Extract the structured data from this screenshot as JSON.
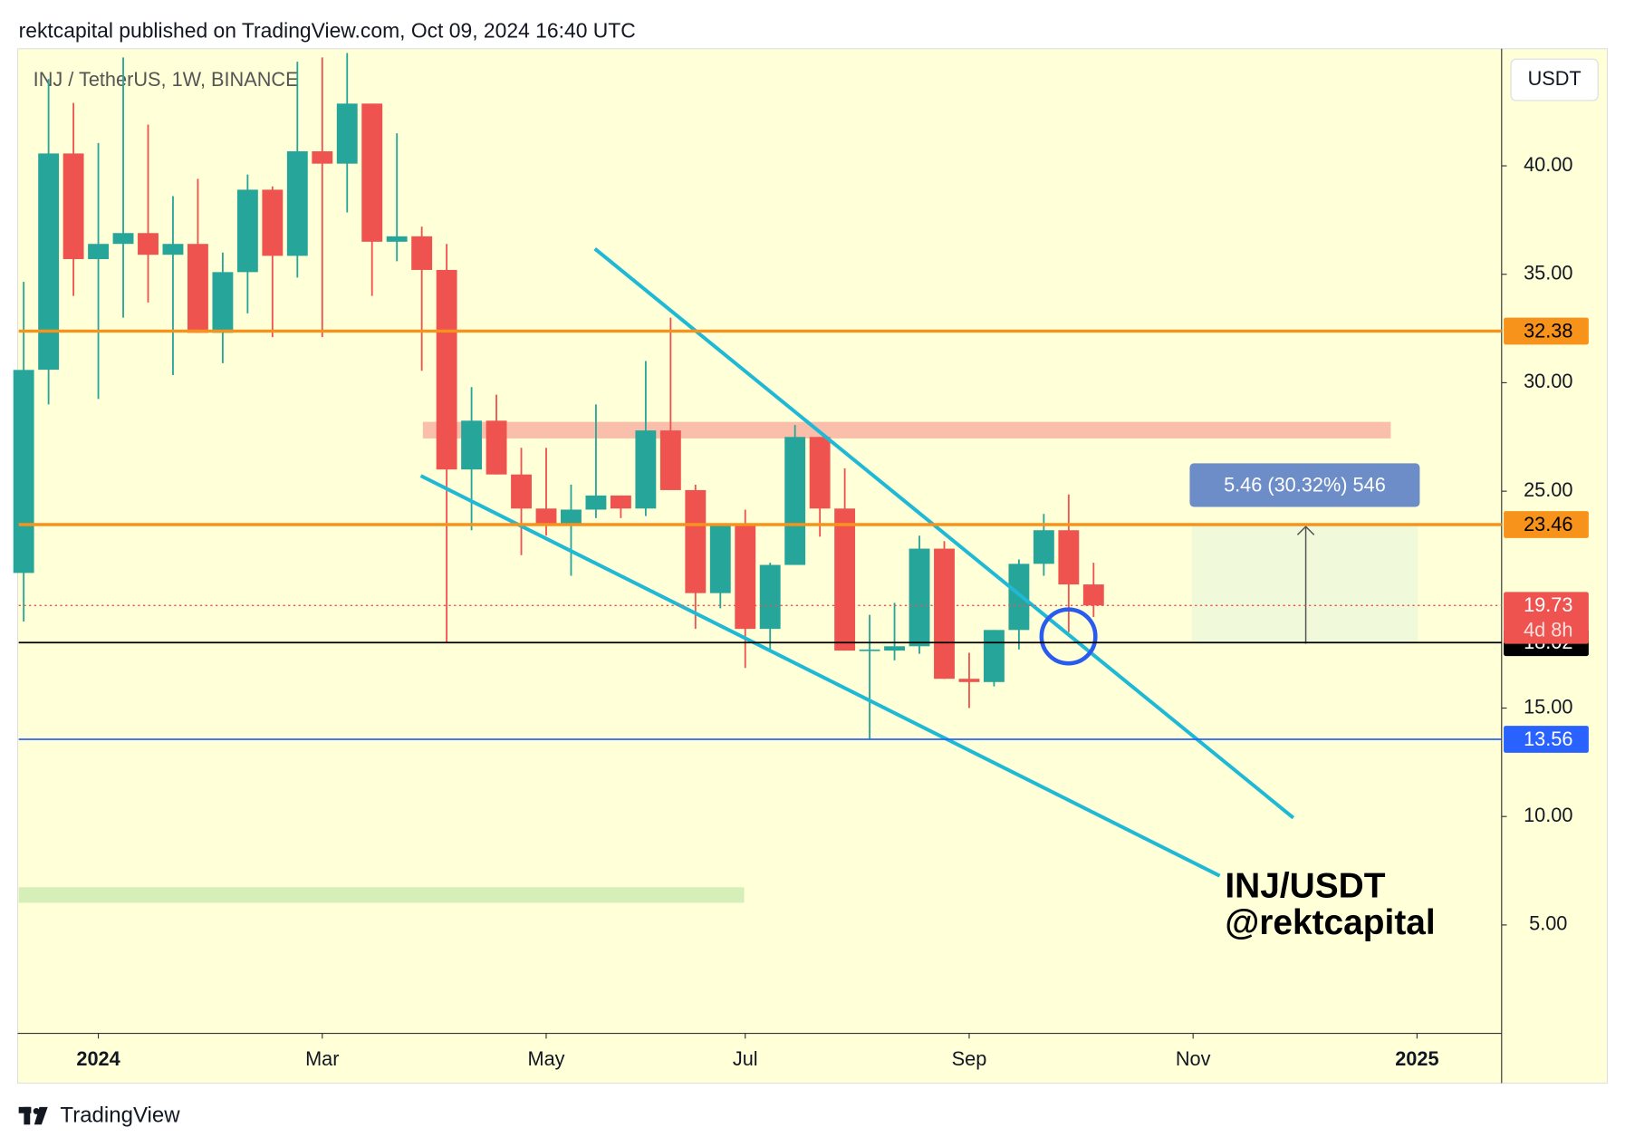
{
  "chart_data": {
    "type": "candlestick",
    "header": "rektcapital published on TradingView.com, Oct 09, 2024 16:40 UTC",
    "title": "INJ / TetherUS, 1W, BINANCE",
    "currency": "USDT",
    "annotation": [
      "INJ/USDT",
      "@rektcapital"
    ],
    "measure_label": "5.46 (30.32%) 546",
    "countdown": "4d 8h",
    "brand": "TradingView",
    "up_color": "#26a69a",
    "down_color": "#ef5350",
    "categories": [
      null,
      null,
      null,
      null,
      null,
      null,
      null,
      null,
      null,
      null,
      null,
      null,
      null,
      null,
      null,
      null,
      null,
      null,
      null,
      null,
      null,
      null,
      null,
      null,
      null,
      null,
      null,
      null,
      null,
      null,
      null,
      null,
      null,
      null,
      null,
      null,
      null,
      null,
      null,
      null,
      null,
      null,
      null,
      null
    ],
    "open": [
      21.23,
      30.6,
      40.57,
      35.7,
      36.4,
      36.9,
      35.9,
      36.4,
      32.3,
      35.1,
      38.9,
      35.85,
      40.67,
      40.1,
      42.87,
      36.5,
      36.75,
      35.2,
      26.0,
      28.25,
      25.77,
      24.2,
      23.48,
      24.15,
      24.8,
      24.2,
      27.8,
      25.05,
      20.3,
      23.5,
      18.65,
      21.6,
      27.5,
      24.2,
      17.65,
      17.65,
      17.85,
      22.35,
      16.35,
      16.2,
      18.6,
      21.65,
      23.2,
      20.7
    ],
    "high": [
      34.65,
      44.0,
      42.9,
      41.05,
      45.0,
      41.9,
      38.6,
      39.4,
      36.0,
      39.6,
      39.05,
      44.8,
      45.0,
      45.2,
      42.87,
      41.5,
      37.2,
      36.4,
      29.8,
      29.45,
      27.0,
      27.0,
      25.3,
      29.0,
      24.8,
      31.0,
      33.0,
      25.3,
      23.5,
      24.15,
      21.7,
      28.05,
      27.5,
      26.05,
      19.3,
      19.85,
      22.95,
      22.7,
      17.55,
      18.6,
      21.85,
      23.95,
      24.85,
      21.7
    ],
    "low": [
      18.99,
      29.0,
      34.0,
      29.25,
      33.0,
      33.7,
      30.35,
      32.3,
      30.9,
      33.2,
      32.1,
      34.85,
      32.1,
      37.85,
      34.0,
      35.6,
      30.55,
      18.03,
      23.2,
      25.77,
      22.05,
      22.95,
      21.1,
      23.76,
      23.76,
      23.85,
      25.05,
      18.65,
      19.6,
      16.85,
      17.6,
      21.6,
      22.9,
      17.65,
      13.55,
      17.2,
      17.5,
      16.35,
      15.0,
      16.0,
      17.7,
      21.1,
      18.5,
      19.2
    ],
    "close": [
      30.59,
      40.57,
      35.7,
      36.4,
      36.9,
      35.9,
      36.4,
      32.3,
      35.1,
      38.9,
      35.85,
      40.67,
      40.1,
      42.87,
      36.5,
      36.75,
      35.2,
      26.0,
      28.25,
      25.77,
      24.2,
      23.48,
      24.15,
      24.8,
      24.2,
      27.8,
      25.05,
      20.3,
      23.5,
      18.65,
      21.6,
      27.5,
      24.2,
      17.65,
      17.7,
      17.85,
      22.35,
      16.35,
      16.2,
      18.6,
      21.65,
      23.2,
      20.7,
      19.73
    ],
    "xlim": [
      -0.2,
      59.4
    ],
    "xticks": [
      {
        "value": 3,
        "label": "2024"
      },
      {
        "value": 12,
        "label": "Mar"
      },
      {
        "value": 21,
        "label": "May"
      },
      {
        "value": 29,
        "label": "Jul"
      },
      {
        "value": 38,
        "label": "Sep"
      },
      {
        "value": 47,
        "label": "Nov"
      },
      {
        "value": 56,
        "label": "2025"
      }
    ],
    "ylim": [
      0,
      45.4
    ],
    "yticks": [
      {
        "value": 5,
        "label": "5.00"
      },
      {
        "value": 10,
        "label": "10.00"
      },
      {
        "value": 15,
        "label": "15.00"
      },
      {
        "value": 25,
        "label": "25.00"
      },
      {
        "value": 30,
        "label": "30.00"
      },
      {
        "value": 35,
        "label": "35.00"
      },
      {
        "value": 40,
        "label": "40.00"
      }
    ],
    "price_lines": [
      {
        "value": 32.38,
        "color": "#f7931a"
      },
      {
        "value": 23.46,
        "color": "#f7931a"
      },
      {
        "value": 18.02,
        "color": "#000000"
      },
      {
        "value": 13.56,
        "color": "#2962ff"
      }
    ],
    "last_price": 19.73,
    "last_color": "#ef5350"
  }
}
